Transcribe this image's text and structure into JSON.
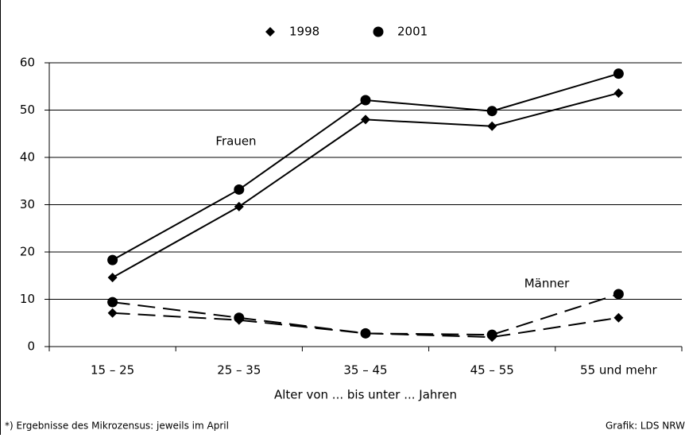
{
  "chart_data": {
    "type": "line",
    "categories": [
      "15 – 25",
      "25 – 35",
      "35 – 45",
      "45 – 55",
      "55 und mehr"
    ],
    "legend": [
      "1998",
      "2001"
    ],
    "markers": [
      "diamond",
      "circle"
    ],
    "groups": [
      {
        "label": "Frauen",
        "dashed": false,
        "values": [
          [
            14.6,
            29.6,
            48,
            46.6,
            53.6
          ],
          [
            18.3,
            33.2,
            52.1,
            49.8,
            57.7
          ]
        ]
      },
      {
        "label": "Männer",
        "dashed": true,
        "values": [
          [
            7.1,
            5.6,
            2.8,
            2.0,
            6.1
          ],
          [
            9.4,
            6.1,
            2.8,
            2.5,
            11.1
          ]
        ]
      }
    ],
    "ylim": [
      0,
      60
    ],
    "yticks": [
      0,
      10,
      20,
      30,
      40,
      50,
      60
    ],
    "grid": true,
    "xlabel": "Alter von ... bis unter ... Jahren",
    "footnote": "*) Ergebnisse des Mikrozensus: jeweils im April",
    "source": "Grafik: LDS NRW"
  }
}
